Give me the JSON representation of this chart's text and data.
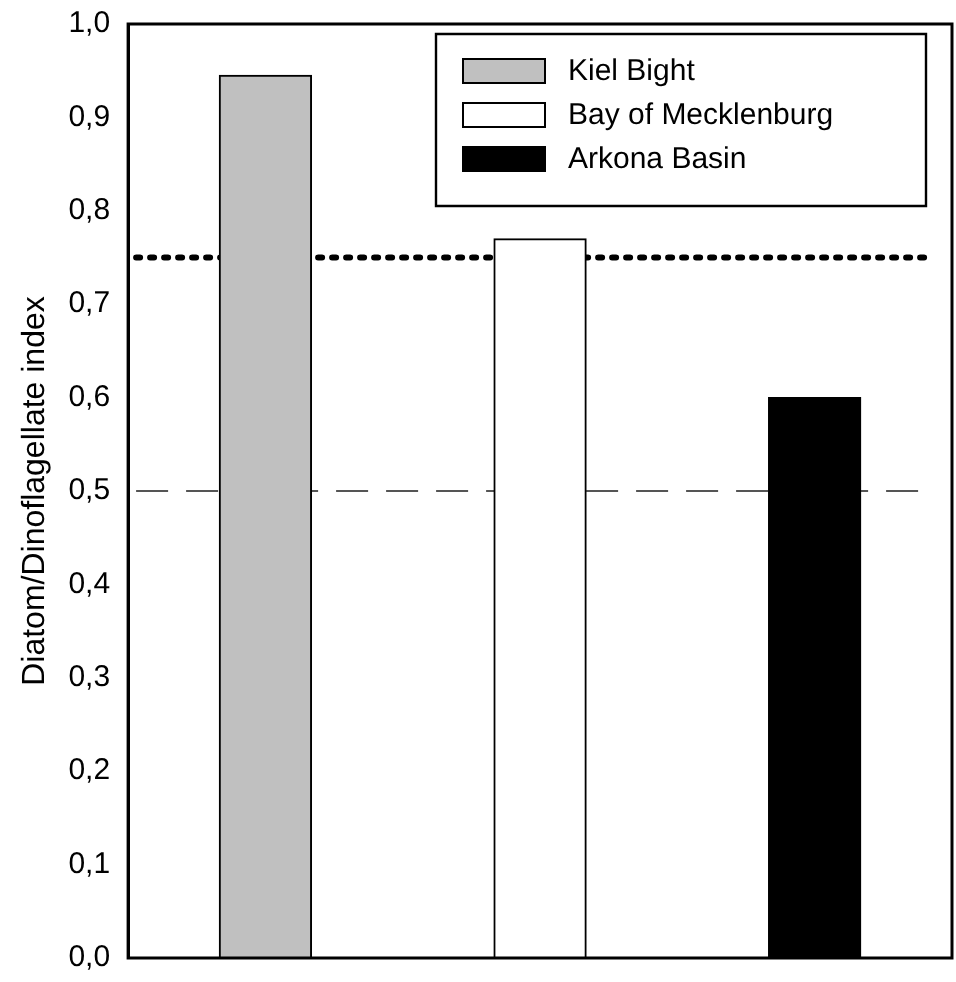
{
  "chart_data": {
    "type": "bar",
    "ylabel": "Diatom/Dinoflagellate index",
    "categories": [
      null,
      null,
      null
    ],
    "series": [
      {
        "name": "Kiel Bight",
        "color": "#c0c0c0",
        "values": [
          0.945,
          null,
          null
        ]
      },
      {
        "name": "Bay of Mecklenburg",
        "color": "#ffffff",
        "values": [
          null,
          0.77,
          null
        ]
      },
      {
        "name": "Arkona Basin",
        "color": "#000000",
        "values": [
          null,
          null,
          0.6
        ]
      }
    ],
    "ylim": [
      0,
      1
    ],
    "yticks": [
      {
        "value": 0,
        "label": "0,0"
      },
      {
        "value": 0.1,
        "label": "0,1"
      },
      {
        "value": 0.2,
        "label": "0,2"
      },
      {
        "value": 0.3,
        "label": "0,3"
      },
      {
        "value": 0.4,
        "label": "0,4"
      },
      {
        "value": 0.5,
        "label": "0,5"
      },
      {
        "value": 0.6,
        "label": "0,6"
      },
      {
        "value": 0.7,
        "label": "0,7"
      },
      {
        "value": 0.8,
        "label": "0,8"
      },
      {
        "value": 0.9,
        "label": "0,9"
      },
      {
        "value": 1,
        "label": "1,0"
      }
    ],
    "ref_lines": [
      {
        "axis": "y",
        "value": 0.75,
        "line_style": "dotted",
        "color": "#000000"
      },
      {
        "axis": "y",
        "value": 0.5,
        "line_style": "dashed",
        "color": "#555555"
      }
    ],
    "grid": false,
    "legend": "top right",
    "tick_labels": "y"
  }
}
